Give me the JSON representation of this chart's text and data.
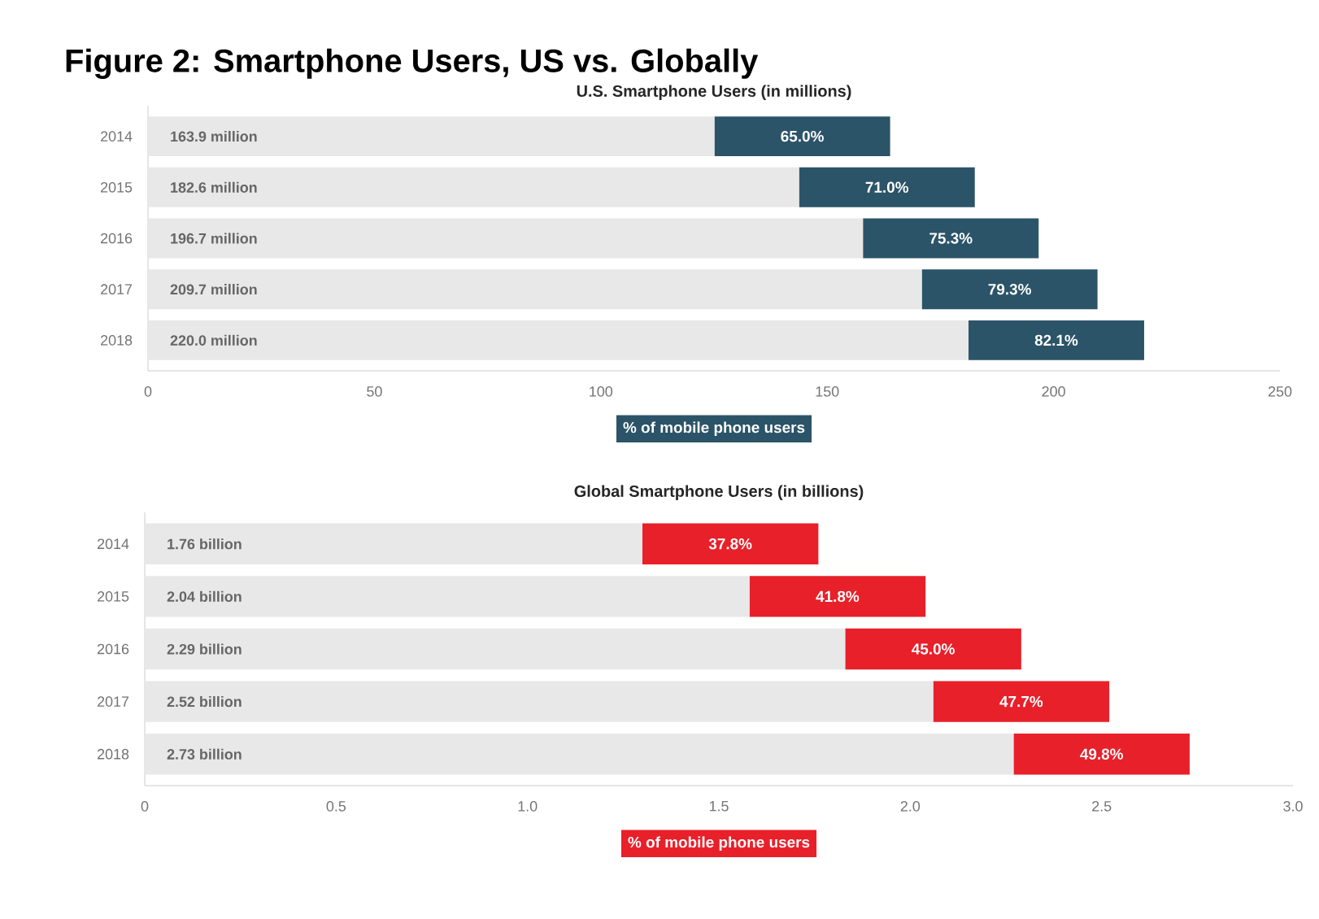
{
  "chart_data": [
    {
      "type": "bar",
      "orientation": "horizontal",
      "stacked": true,
      "title": "Figure 2: Smartphone Users, US vs. Globally",
      "subtitle": "U.S. Smartphone Users (in millions)",
      "categories": [
        "2014",
        "2015",
        "2016",
        "2017",
        "2018"
      ],
      "series": [
        {
          "color": "#e8e8e8",
          "values": [
            125.1,
            143.8,
            157.9,
            170.9,
            181.2
          ]
        },
        {
          "color": "#2b5468",
          "values": [
            38.8,
            38.8,
            38.8,
            38.8,
            38.8
          ]
        }
      ],
      "totals": [
        "163.9 million",
        "182.6 million",
        "196.7 million",
        "209.7 million",
        "220.0 million"
      ],
      "annotations": [
        "65.0%",
        "71.0%",
        "75.3%",
        "79.3%",
        "82.1%",
        "% of mobile phone users"
      ],
      "xlim": [
        0,
        250
      ],
      "xticks": [
        0,
        50,
        100,
        150,
        200,
        250
      ]
    },
    {
      "type": "bar",
      "orientation": "horizontal",
      "stacked": true,
      "title": "Global Smartphone Users (in billions)",
      "categories": [
        "2014",
        "2015",
        "2016",
        "2017",
        "2018"
      ],
      "series": [
        {
          "color": "#e8e8e8",
          "values": [
            1.3,
            1.58,
            1.83,
            2.06,
            2.27
          ]
        },
        {
          "color": "#e8202a",
          "values": [
            0.46,
            0.46,
            0.46,
            0.46,
            0.46
          ]
        }
      ],
      "totals": [
        "1.76 billion",
        "2.04 billion",
        "2.29 billion",
        "2.52 billion",
        "2.73 billion"
      ],
      "annotations": [
        "37.8%",
        "41.8%",
        "45.0%",
        "47.7%",
        "49.8%",
        "% of mobile phone users"
      ],
      "xlim": [
        0,
        3.0
      ],
      "xticks": [
        0,
        0.5,
        {
          "value": 1.0,
          "label": "1.0"
        },
        1.5,
        {
          "value": 2.0,
          "label": "2.0"
        },
        2.5,
        {
          "value": 3.0,
          "label": "3.0"
        }
      ]
    }
  ]
}
